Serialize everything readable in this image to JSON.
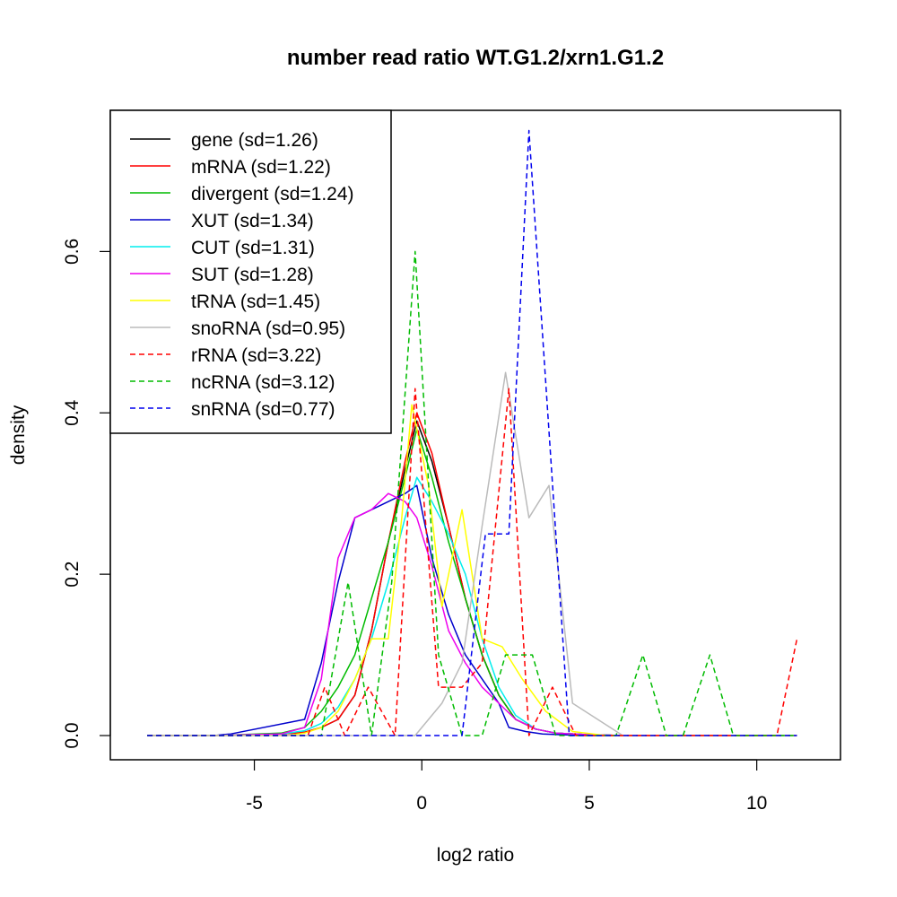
{
  "chart_data": {
    "type": "line",
    "title": "number read ratio WT.G1.2/xrn1.G1.2",
    "xlabel": "log2 ratio",
    "ylabel": "density",
    "xlim": [
      -9.3,
      12.5
    ],
    "ylim": [
      -0.03,
      0.775
    ],
    "xticks": [
      -5,
      0,
      5,
      10
    ],
    "yticks": [
      0.0,
      0.2,
      0.4,
      0.6
    ],
    "xtick_labels": [
      "-5",
      "0",
      "5",
      "10"
    ],
    "ytick_labels": [
      "0.0",
      "0.2",
      "0.4",
      "0.6"
    ],
    "legend_position": "top-left",
    "series": [
      {
        "name": "gene (sd=1.26)",
        "color": "#000000",
        "dash": "solid",
        "x": [
          -8.2,
          -6.2,
          -4.2,
          -3.5,
          -3.0,
          -2.5,
          -2.0,
          -1.5,
          -1.0,
          -0.5,
          -0.15,
          0.3,
          0.8,
          1.3,
          1.8,
          2.3,
          2.8,
          3.4,
          4.0,
          5.0,
          6.0,
          11.2
        ],
        "y": [
          0.0,
          0.0,
          0.002,
          0.004,
          0.01,
          0.02,
          0.05,
          0.13,
          0.24,
          0.33,
          0.39,
          0.34,
          0.26,
          0.17,
          0.1,
          0.05,
          0.02,
          0.008,
          0.003,
          0.001,
          0.0,
          0.0
        ]
      },
      {
        "name": "mRNA (sd=1.22)",
        "color": "#ff0000",
        "dash": "solid",
        "x": [
          -8.2,
          -6.2,
          -4.2,
          -3.5,
          -3.0,
          -2.5,
          -2.0,
          -1.5,
          -1.0,
          -0.5,
          -0.15,
          0.3,
          0.8,
          1.3,
          1.8,
          2.3,
          2.8,
          3.4,
          4.0,
          5.0,
          6.0,
          11.2
        ],
        "y": [
          0.0,
          0.0,
          0.002,
          0.004,
          0.01,
          0.02,
          0.05,
          0.13,
          0.24,
          0.34,
          0.4,
          0.35,
          0.26,
          0.17,
          0.1,
          0.05,
          0.02,
          0.008,
          0.003,
          0.001,
          0.0,
          0.0
        ]
      },
      {
        "name": "divergent (sd=1.24)",
        "color": "#00bb00",
        "dash": "solid",
        "x": [
          -8.2,
          -6.2,
          -4.2,
          -3.5,
          -3.0,
          -2.5,
          -2.0,
          -1.5,
          -1.0,
          -0.5,
          -0.15,
          0.3,
          0.8,
          1.3,
          1.8,
          2.3,
          2.8,
          3.4,
          4.0,
          5.0,
          6.0,
          11.2
        ],
        "y": [
          0.0,
          0.0,
          0.003,
          0.01,
          0.03,
          0.06,
          0.1,
          0.17,
          0.24,
          0.32,
          0.38,
          0.32,
          0.24,
          0.17,
          0.1,
          0.05,
          0.02,
          0.008,
          0.003,
          0.001,
          0.0,
          0.0
        ]
      },
      {
        "name": "XUT (sd=1.34)",
        "color": "#0000cc",
        "dash": "solid",
        "x": [
          -8.2,
          -6.2,
          -5.7,
          -3.5,
          -3.0,
          -2.5,
          -2.0,
          -1.5,
          -1.0,
          -0.5,
          -0.15,
          0.3,
          0.8,
          1.3,
          1.8,
          2.3,
          2.6,
          3.1,
          3.6,
          4.2,
          5.0,
          6.0,
          11.2
        ],
        "y": [
          0.0,
          0.0,
          0.002,
          0.02,
          0.09,
          0.19,
          0.27,
          0.28,
          0.29,
          0.3,
          0.31,
          0.22,
          0.15,
          0.1,
          0.07,
          0.04,
          0.01,
          0.005,
          0.002,
          0.001,
          0.0,
          0.0,
          0.0
        ]
      },
      {
        "name": "CUT (sd=1.31)",
        "color": "#00eeee",
        "dash": "solid",
        "x": [
          -8.2,
          -6.2,
          -4.2,
          -3.5,
          -3.0,
          -2.5,
          -2.0,
          -1.5,
          -1.0,
          -0.5,
          -0.15,
          0.3,
          0.8,
          1.3,
          1.8,
          2.3,
          2.8,
          3.4,
          4.0,
          5.0,
          6.0,
          11.2
        ],
        "y": [
          0.0,
          0.0,
          0.002,
          0.006,
          0.015,
          0.035,
          0.07,
          0.12,
          0.19,
          0.27,
          0.32,
          0.29,
          0.25,
          0.2,
          0.12,
          0.06,
          0.025,
          0.008,
          0.003,
          0.001,
          0.0,
          0.0
        ]
      },
      {
        "name": "SUT (sd=1.28)",
        "color": "#ee00ee",
        "dash": "solid",
        "x": [
          -8.2,
          -6.2,
          -4.2,
          -3.5,
          -3.0,
          -2.5,
          -2.0,
          -1.5,
          -1.0,
          -0.5,
          -0.15,
          0.3,
          0.8,
          1.3,
          1.8,
          2.3,
          2.8,
          3.4,
          4.0,
          5.0,
          6.0,
          11.2
        ],
        "y": [
          0.0,
          0.0,
          0.002,
          0.01,
          0.07,
          0.22,
          0.27,
          0.28,
          0.3,
          0.29,
          0.27,
          0.21,
          0.13,
          0.09,
          0.06,
          0.04,
          0.02,
          0.008,
          0.003,
          0.001,
          0.0,
          0.0
        ]
      },
      {
        "name": "tRNA (sd=1.45)",
        "color": "#ffff00",
        "dash": "solid",
        "x": [
          -8.2,
          -4.0,
          -3.5,
          -3.0,
          -2.5,
          -2.0,
          -1.5,
          -1.0,
          -0.6,
          -0.3,
          0.2,
          0.6,
          1.2,
          1.8,
          2.4,
          3.0,
          3.7,
          4.5,
          5.5,
          11.2
        ],
        "y": [
          0.0,
          0.0,
          0.003,
          0.01,
          0.03,
          0.07,
          0.12,
          0.12,
          0.27,
          0.41,
          0.31,
          0.16,
          0.28,
          0.12,
          0.11,
          0.07,
          0.03,
          0.005,
          0.0,
          0.0
        ]
      },
      {
        "name": "snoRNA (sd=0.95)",
        "color": "#bbbbbb",
        "dash": "solid",
        "x": [
          -8.2,
          -0.2,
          0.6,
          1.2,
          1.8,
          2.5,
          3.2,
          3.8,
          4.5,
          6.0,
          11.2
        ],
        "y": [
          0.0,
          0.0,
          0.04,
          0.09,
          0.26,
          0.45,
          0.27,
          0.31,
          0.04,
          0.0,
          0.0
        ]
      },
      {
        "name": "rRNA (sd=3.22)",
        "color": "#ff0000",
        "dash": "dashed",
        "x": [
          -8.2,
          -3.4,
          -2.9,
          -2.3,
          -1.6,
          -0.8,
          -0.2,
          0.5,
          1.2,
          1.8,
          2.6,
          3.2,
          3.9,
          4.6,
          10.6,
          11.2
        ],
        "y": [
          0.0,
          0.0,
          0.06,
          0.0,
          0.06,
          0.0,
          0.43,
          0.06,
          0.06,
          0.09,
          0.43,
          0.0,
          0.06,
          0.0,
          0.0,
          0.12
        ]
      },
      {
        "name": "ncRNA (sd=3.12)",
        "color": "#00bb00",
        "dash": "dashed",
        "x": [
          -8.2,
          -3.0,
          -2.2,
          -1.5,
          -0.9,
          -0.2,
          0.5,
          1.2,
          1.8,
          2.5,
          3.3,
          4.0,
          5.8,
          6.6,
          7.3,
          7.8,
          8.6,
          9.3,
          11.2
        ],
        "y": [
          0.0,
          0.0,
          0.19,
          0.0,
          0.19,
          0.6,
          0.1,
          0.0,
          0.0,
          0.1,
          0.1,
          0.0,
          0.0,
          0.1,
          0.0,
          0.0,
          0.1,
          0.0,
          0.0
        ]
      },
      {
        "name": "snRNA (sd=0.77)",
        "color": "#0000ee",
        "dash": "dashed",
        "x": [
          -8.2,
          1.2,
          1.9,
          2.6,
          3.2,
          4.4,
          6.0,
          11.2
        ],
        "y": [
          0.0,
          0.0,
          0.25,
          0.25,
          0.75,
          0.0,
          0.0,
          0.0
        ]
      }
    ]
  }
}
